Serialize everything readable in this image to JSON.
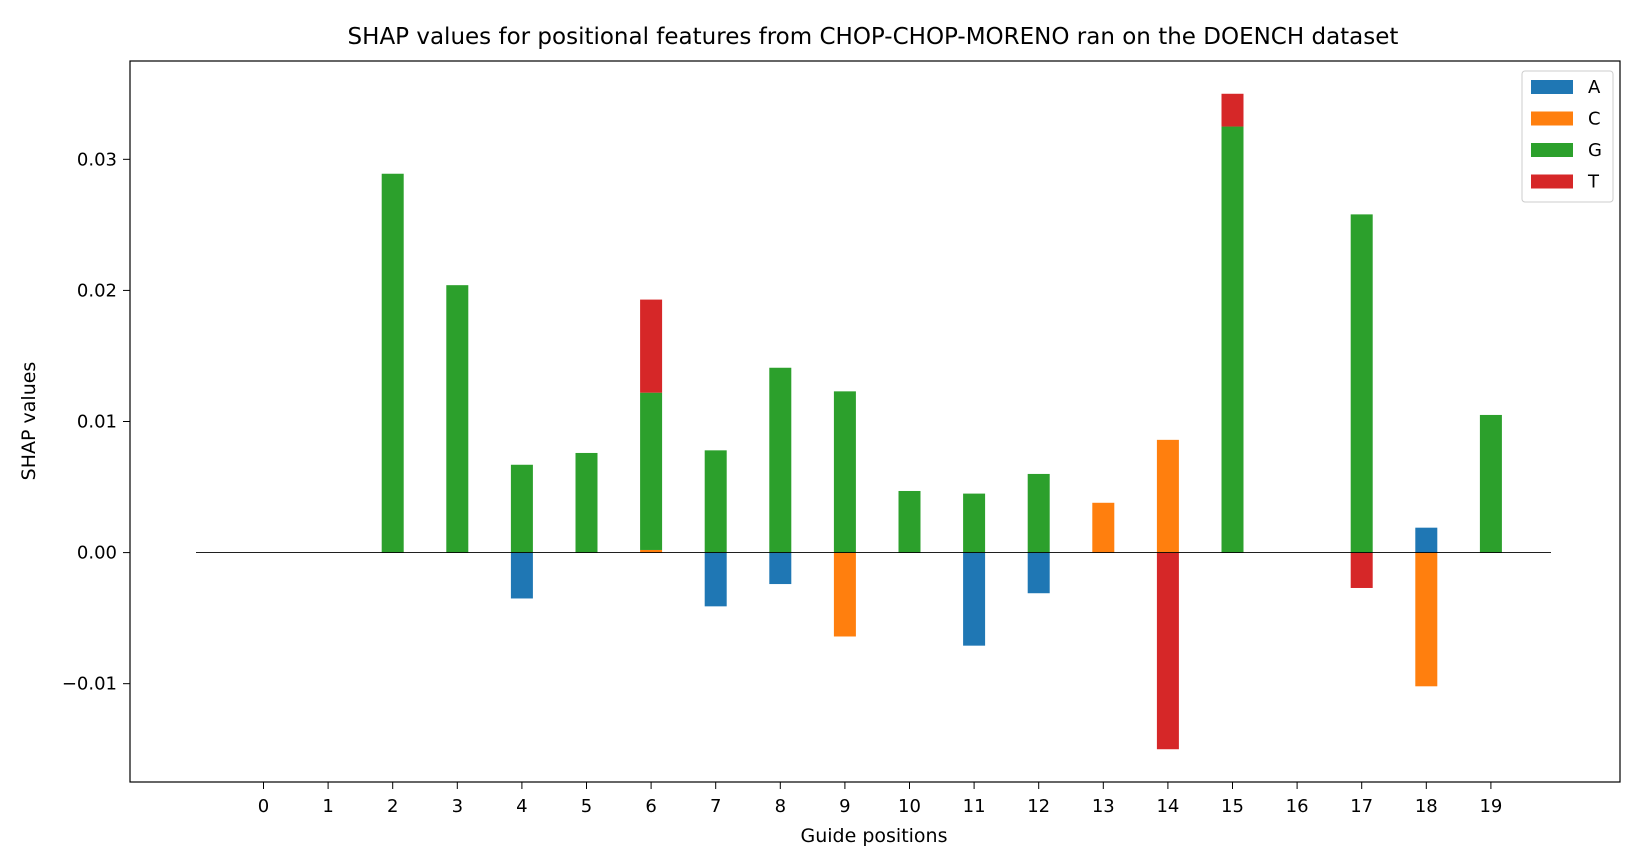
{
  "chart_data": {
    "type": "bar",
    "title": "SHAP values for positional features from CHOP-CHOP-MORENO ran on the DOENCH dataset",
    "xlabel": "Guide positions",
    "ylabel": "SHAP values",
    "categories": [
      "0",
      "1",
      "2",
      "3",
      "4",
      "5",
      "6",
      "7",
      "8",
      "9",
      "10",
      "11",
      "12",
      "13",
      "14",
      "15",
      "16",
      "17",
      "18",
      "19"
    ],
    "ylim": [
      -0.0175,
      0.0375
    ],
    "yticks": [
      -0.01,
      0.0,
      0.01,
      0.02,
      0.03
    ],
    "ytick_labels": [
      "−0.01",
      "0.00",
      "0.01",
      "0.02",
      "0.03"
    ],
    "stacked": true,
    "legend_position": "upper right",
    "zero_line": true,
    "series": [
      {
        "name": "A",
        "color": "#1f77b4",
        "values": [
          0,
          0,
          0,
          0,
          -0.0035,
          0,
          0,
          -0.0041,
          -0.0024,
          0,
          0,
          -0.0071,
          -0.0031,
          0,
          0,
          0,
          0,
          0,
          0.0019,
          0
        ]
      },
      {
        "name": "C",
        "color": "#ff7f0e",
        "values": [
          0,
          0,
          0,
          0,
          0,
          0,
          0.0002,
          0,
          0,
          -0.0064,
          0,
          0,
          0,
          0.0038,
          0.0086,
          0,
          0,
          0,
          -0.0102,
          0
        ]
      },
      {
        "name": "G",
        "color": "#2ca02c",
        "values": [
          0,
          0,
          0.0289,
          0.0204,
          0.0067,
          0.0076,
          0.012,
          0.0078,
          0.0141,
          0.0123,
          0.0047,
          0.0045,
          0.006,
          0,
          0,
          0.0325,
          0,
          0.0258,
          0,
          0.0105
        ]
      },
      {
        "name": "T",
        "color": "#d62728",
        "values": [
          0,
          0,
          0,
          0,
          0,
          0,
          0.0071,
          0,
          0,
          0,
          0,
          0,
          0,
          0,
          -0.015,
          0.0025,
          0,
          -0.0027,
          0,
          0
        ]
      }
    ]
  }
}
